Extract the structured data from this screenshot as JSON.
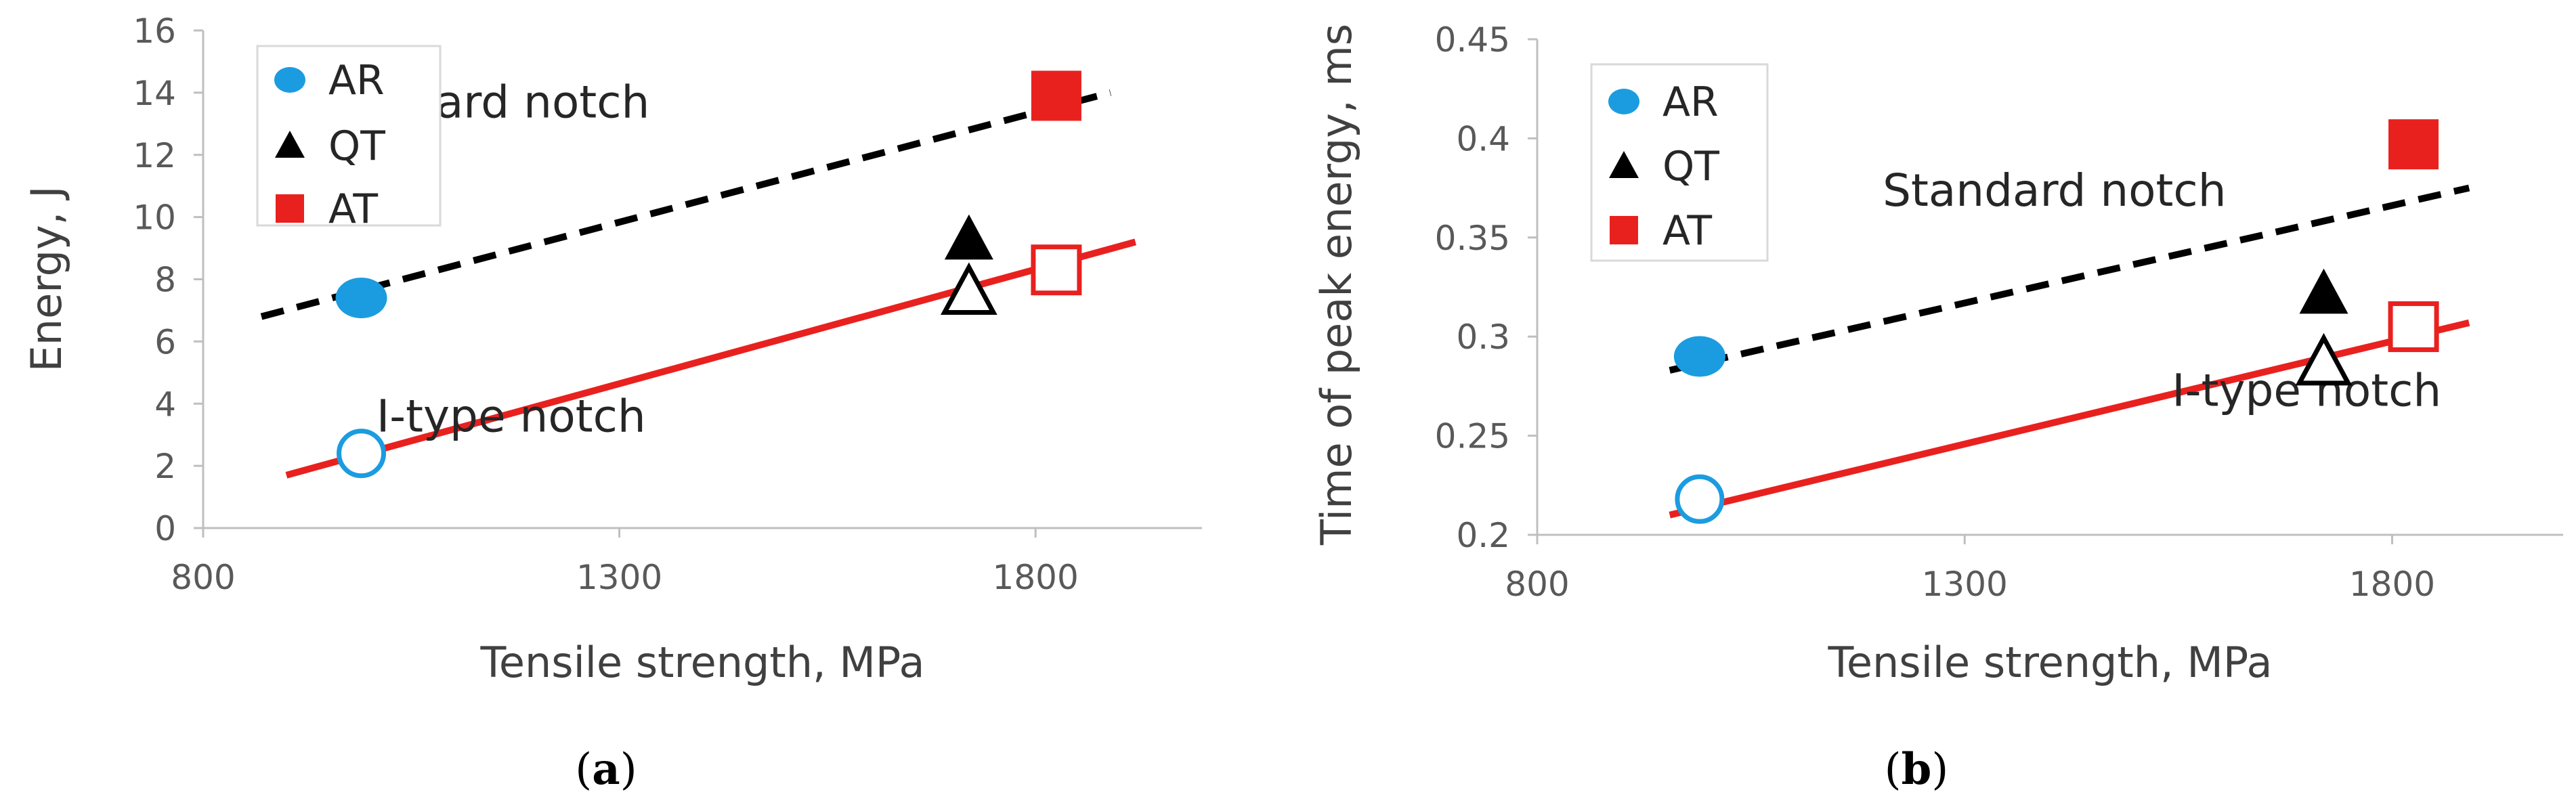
{
  "colors": {
    "ar": "#1b9ce0",
    "qt": "#000000",
    "at": "#e8211f",
    "standard_line": "#000000",
    "itype_line": "#e8211f",
    "axis": "#bfbfbf"
  },
  "chart_data": [
    {
      "type": "scatter",
      "panel": "a",
      "panel_label": "a",
      "title": "",
      "xlabel": "Tensile strength, MPa",
      "ylabel": "Energy, J",
      "xlim": [
        800,
        2000
      ],
      "ylim": [
        0,
        16
      ],
      "xticks": [
        800,
        1300,
        1800
      ],
      "yticks": [
        0,
        2,
        4,
        6,
        8,
        10,
        12,
        14,
        16
      ],
      "ytick_labels": [
        "0",
        "2",
        "4",
        "6",
        "8",
        "10",
        "12",
        "14",
        "16"
      ],
      "xtick_labels": [
        "800",
        "1300",
        "1800"
      ],
      "legend": [
        {
          "label": "AR",
          "marker": "circle",
          "color": "#1b9ce0"
        },
        {
          "label": "QT",
          "marker": "triangle",
          "color": "#000000"
        },
        {
          "label": "AT",
          "marker": "square",
          "color": "#e8211f"
        }
      ],
      "legend_position": "top-left",
      "series": [
        {
          "name": "AR",
          "notch": "Standard notch",
          "filled": true,
          "marker": "circle",
          "color": "#1b9ce0",
          "x": 990,
          "y": 7.4
        },
        {
          "name": "QT",
          "notch": "Standard notch",
          "filled": true,
          "marker": "triangle",
          "color": "#000000",
          "x": 1720,
          "y": 9.3
        },
        {
          "name": "AT",
          "notch": "Standard notch",
          "filled": true,
          "marker": "square",
          "color": "#e8211f",
          "x": 1825,
          "y": 13.9
        },
        {
          "name": "AR",
          "notch": "I-type notch",
          "filled": false,
          "marker": "circle",
          "color": "#1b9ce0",
          "x": 990,
          "y": 2.4
        },
        {
          "name": "QT",
          "notch": "I-type notch",
          "filled": false,
          "marker": "triangle",
          "color": "#000000",
          "x": 1720,
          "y": 7.6
        },
        {
          "name": "AT",
          "notch": "I-type notch",
          "filled": false,
          "marker": "square",
          "color": "#e8211f",
          "x": 1825,
          "y": 8.3
        }
      ],
      "trendlines": [
        {
          "name": "Standard notch",
          "style": "dashed",
          "color": "#000000",
          "x": [
            870,
            1890
          ],
          "y": [
            6.8,
            14.0
          ]
        },
        {
          "name": "I-type notch",
          "style": "solid",
          "color": "#e8211f",
          "x": [
            900,
            1920
          ],
          "y": [
            1.7,
            9.2
          ]
        }
      ],
      "annotations": [
        {
          "text": "Standard notch",
          "x": 1130,
          "y": 13.2
        },
        {
          "text": "I-type notch",
          "x": 1170,
          "y": 3.1
        }
      ]
    },
    {
      "type": "scatter",
      "panel": "b",
      "panel_label": "b",
      "title": "",
      "xlabel": "Tensile strength, MPa",
      "ylabel": "Time of peak energy, ms",
      "xlim": [
        800,
        2000
      ],
      "ylim": [
        0.2,
        0.45
      ],
      "xticks": [
        800,
        1300,
        1800
      ],
      "yticks": [
        0.2,
        0.25,
        0.3,
        0.35,
        0.4,
        0.45
      ],
      "ytick_labels": [
        "0.2",
        "0.25",
        "0.3",
        "0.35",
        "0.4",
        "0.45"
      ],
      "xtick_labels": [
        "800",
        "1300",
        "1800"
      ],
      "legend": [
        {
          "label": "AR",
          "marker": "circle",
          "color": "#1b9ce0"
        },
        {
          "label": "QT",
          "marker": "triangle",
          "color": "#000000"
        },
        {
          "label": "AT",
          "marker": "square",
          "color": "#e8211f"
        }
      ],
      "legend_position": "top-left",
      "series": [
        {
          "name": "AR",
          "notch": "Standard notch",
          "filled": true,
          "marker": "circle",
          "color": "#1b9ce0",
          "x": 990,
          "y": 0.29
        },
        {
          "name": "QT",
          "notch": "Standard notch",
          "filled": true,
          "marker": "triangle",
          "color": "#000000",
          "x": 1720,
          "y": 0.322
        },
        {
          "name": "AT",
          "notch": "Standard notch",
          "filled": true,
          "marker": "square",
          "color": "#e8211f",
          "x": 1825,
          "y": 0.397
        },
        {
          "name": "AR",
          "notch": "I-type notch",
          "filled": false,
          "marker": "circle",
          "color": "#1b9ce0",
          "x": 990,
          "y": 0.218
        },
        {
          "name": "QT",
          "notch": "I-type notch",
          "filled": false,
          "marker": "triangle",
          "color": "#000000",
          "x": 1720,
          "y": 0.287
        },
        {
          "name": "AT",
          "notch": "I-type notch",
          "filled": false,
          "marker": "square",
          "color": "#e8211f",
          "x": 1825,
          "y": 0.305
        }
      ],
      "trendlines": [
        {
          "name": "Standard notch",
          "style": "dashed",
          "color": "#000000",
          "x": [
            955,
            1890
          ],
          "y": [
            0.283,
            0.375
          ]
        },
        {
          "name": "I-type notch",
          "style": "solid",
          "color": "#e8211f",
          "x": [
            955,
            1890
          ],
          "y": [
            0.21,
            0.307
          ]
        }
      ],
      "annotations": [
        {
          "text": "Standard notch",
          "x": 1405,
          "y": 0.366
        },
        {
          "text": "I-type notch",
          "x": 1700,
          "y": 0.265
        }
      ]
    }
  ]
}
